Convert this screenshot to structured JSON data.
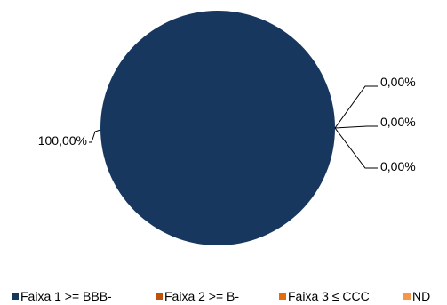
{
  "chart_data": {
    "type": "pie",
    "title": "",
    "categories": [
      "Faixa 1 >= BBB-",
      "Faixa 2 >= B-",
      "Faixa 3 ≤ CCC",
      "ND"
    ],
    "values": [
      100.0,
      0.0,
      0.0,
      0.0
    ],
    "data_labels": [
      "100,00%",
      "0,00%",
      "0,00%",
      "0,00%"
    ],
    "colors": [
      "#17375E",
      "#C0500E",
      "#E46C0A",
      "#F79646"
    ],
    "legend": {
      "placement": "bottom",
      "entries": [
        "Faixa 1 >= BBB-",
        "Faixa 2 >= B-",
        "Faixa 3 ≤ CCC",
        "ND"
      ]
    }
  }
}
